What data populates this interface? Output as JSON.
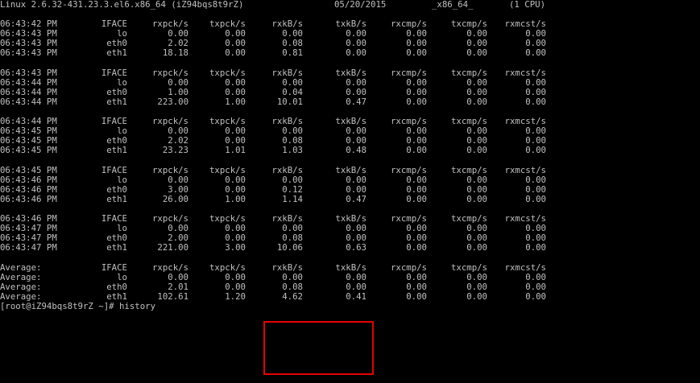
{
  "terminal": {
    "sysinfo": {
      "kernel": "Linux 2.6.32-431.23.3.el6.x86_64 (iZ94bqs8t9rZ)",
      "date": "05/20/2015",
      "arch": "_x86_64_",
      "cpus": "(1 CPU)"
    },
    "columns": [
      "IFACE",
      "rxpck/s",
      "txpck/s",
      "rxkB/s",
      "txkB/s",
      "rxcmp/s",
      "txcmp/s",
      "rxmcst/s"
    ],
    "blocks": [
      {
        "header_time": "06:43:42 PM",
        "rows": [
          {
            "time": "06:43:43 PM",
            "iface": "lo",
            "rxpck": "0.00",
            "txpck": "0.00",
            "rxkb": "0.00",
            "txkb": "0.00",
            "rxcmp": "0.00",
            "txcmp": "0.00",
            "rxmcst": "0.00"
          },
          {
            "time": "06:43:43 PM",
            "iface": "eth0",
            "rxpck": "2.02",
            "txpck": "0.00",
            "rxkb": "0.08",
            "txkb": "0.00",
            "rxcmp": "0.00",
            "txcmp": "0.00",
            "rxmcst": "0.00"
          },
          {
            "time": "06:43:43 PM",
            "iface": "eth1",
            "rxpck": "18.18",
            "txpck": "0.00",
            "rxkb": "0.81",
            "txkb": "0.00",
            "rxcmp": "0.00",
            "txcmp": "0.00",
            "rxmcst": "0.00"
          }
        ]
      },
      {
        "header_time": "06:43:43 PM",
        "rows": [
          {
            "time": "06:43:44 PM",
            "iface": "lo",
            "rxpck": "0.00",
            "txpck": "0.00",
            "rxkb": "0.00",
            "txkb": "0.00",
            "rxcmp": "0.00",
            "txcmp": "0.00",
            "rxmcst": "0.00"
          },
          {
            "time": "06:43:44 PM",
            "iface": "eth0",
            "rxpck": "1.00",
            "txpck": "0.00",
            "rxkb": "0.04",
            "txkb": "0.00",
            "rxcmp": "0.00",
            "txcmp": "0.00",
            "rxmcst": "0.00"
          },
          {
            "time": "06:43:44 PM",
            "iface": "eth1",
            "rxpck": "223.00",
            "txpck": "1.00",
            "rxkb": "10.01",
            "txkb": "0.47",
            "rxcmp": "0.00",
            "txcmp": "0.00",
            "rxmcst": "0.00"
          }
        ]
      },
      {
        "header_time": "06:43:44 PM",
        "rows": [
          {
            "time": "06:43:45 PM",
            "iface": "lo",
            "rxpck": "0.00",
            "txpck": "0.00",
            "rxkb": "0.00",
            "txkb": "0.00",
            "rxcmp": "0.00",
            "txcmp": "0.00",
            "rxmcst": "0.00"
          },
          {
            "time": "06:43:45 PM",
            "iface": "eth0",
            "rxpck": "2.02",
            "txpck": "0.00",
            "rxkb": "0.08",
            "txkb": "0.00",
            "rxcmp": "0.00",
            "txcmp": "0.00",
            "rxmcst": "0.00"
          },
          {
            "time": "06:43:45 PM",
            "iface": "eth1",
            "rxpck": "23.23",
            "txpck": "1.01",
            "rxkb": "1.03",
            "txkb": "0.48",
            "rxcmp": "0.00",
            "txcmp": "0.00",
            "rxmcst": "0.00"
          }
        ]
      },
      {
        "header_time": "06:43:45 PM",
        "rows": [
          {
            "time": "06:43:46 PM",
            "iface": "lo",
            "rxpck": "0.00",
            "txpck": "0.00",
            "rxkb": "0.00",
            "txkb": "0.00",
            "rxcmp": "0.00",
            "txcmp": "0.00",
            "rxmcst": "0.00"
          },
          {
            "time": "06:43:46 PM",
            "iface": "eth0",
            "rxpck": "3.00",
            "txpck": "0.00",
            "rxkb": "0.12",
            "txkb": "0.00",
            "rxcmp": "0.00",
            "txcmp": "0.00",
            "rxmcst": "0.00"
          },
          {
            "time": "06:43:46 PM",
            "iface": "eth1",
            "rxpck": "26.00",
            "txpck": "1.00",
            "rxkb": "1.14",
            "txkb": "0.47",
            "rxcmp": "0.00",
            "txcmp": "0.00",
            "rxmcst": "0.00"
          }
        ]
      },
      {
        "header_time": "06:43:46 PM",
        "rows": [
          {
            "time": "06:43:47 PM",
            "iface": "lo",
            "rxpck": "0.00",
            "txpck": "0.00",
            "rxkb": "0.00",
            "txkb": "0.00",
            "rxcmp": "0.00",
            "txcmp": "0.00",
            "rxmcst": "0.00"
          },
          {
            "time": "06:43:47 PM",
            "iface": "eth0",
            "rxpck": "2.00",
            "txpck": "0.00",
            "rxkb": "0.08",
            "txkb": "0.00",
            "rxcmp": "0.00",
            "txcmp": "0.00",
            "rxmcst": "0.00"
          },
          {
            "time": "06:43:47 PM",
            "iface": "eth1",
            "rxpck": "221.00",
            "txpck": "3.00",
            "rxkb": "10.06",
            "txkb": "0.63",
            "rxcmp": "0.00",
            "txcmp": "0.00",
            "rxmcst": "0.00"
          }
        ]
      },
      {
        "header_time": "Average:",
        "rows": [
          {
            "time": "Average:",
            "iface": "lo",
            "rxpck": "0.00",
            "txpck": "0.00",
            "rxkb": "0.00",
            "txkb": "0.00",
            "rxcmp": "0.00",
            "txcmp": "0.00",
            "rxmcst": "0.00"
          },
          {
            "time": "Average:",
            "iface": "eth0",
            "rxpck": "2.01",
            "txpck": "0.00",
            "rxkb": "0.08",
            "txkb": "0.00",
            "rxcmp": "0.00",
            "txcmp": "0.00",
            "rxmcst": "0.00"
          },
          {
            "time": "Average:",
            "iface": "eth1",
            "rxpck": "102.61",
            "txpck": "1.20",
            "rxkb": "4.62",
            "txkb": "0.41",
            "rxcmp": "0.00",
            "txcmp": "0.00",
            "rxmcst": "0.00"
          }
        ]
      }
    ],
    "prompt": "[root@iZ94bqs8t9rZ ~]# history",
    "text_color": "#c0c0c0",
    "background_color": "#000000",
    "highlight_color": "#e60000"
  }
}
